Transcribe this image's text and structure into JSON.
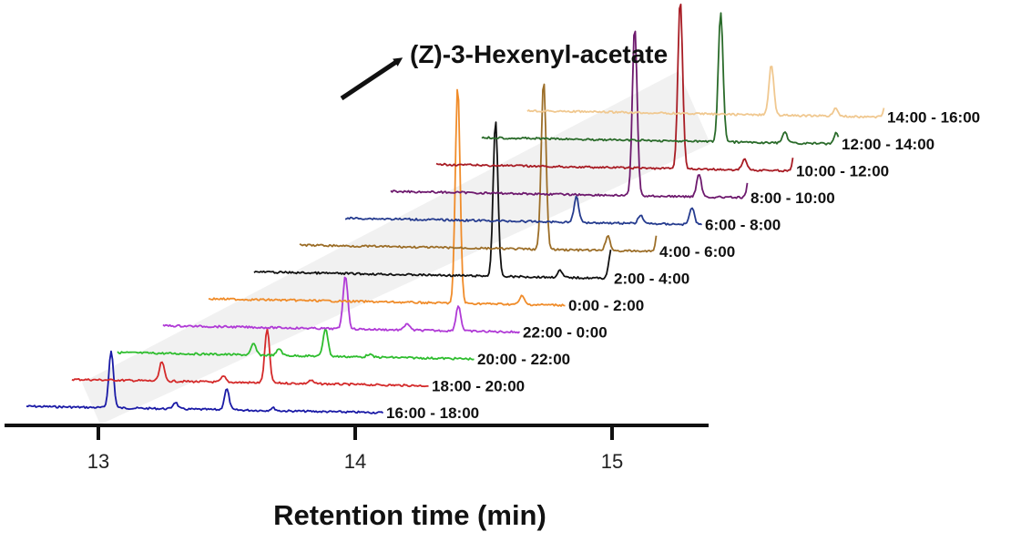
{
  "chart_data": {
    "type": "line",
    "xlabel": "Retention time (min)",
    "ylabel": "",
    "xlim": [
      12.72,
      15.38
    ],
    "xticks": [
      13,
      14,
      15
    ],
    "xtick_labels": [
      "13",
      "14",
      "15"
    ],
    "annotation": "(Z)-3-Hexenyl-acetate",
    "series": [
      {
        "name": "16:00 - 18:00",
        "color": "#1a1aa6",
        "x_start": 12.72,
        "x_end": 13.72,
        "peaks": [
          {
            "x": 13.05,
            "h": 1.0
          },
          {
            "x": 13.3,
            "h": 0.12
          },
          {
            "x": 13.5,
            "h": 0.37
          },
          {
            "x": 13.68,
            "h": 0.05
          }
        ]
      },
      {
        "name": "18:00 - 20:00",
        "color": "#d42a2a",
        "x_start": 12.72,
        "x_end": 13.72,
        "peaks": [
          {
            "x": 13.07,
            "h": 0.34
          },
          {
            "x": 13.31,
            "h": 0.1
          },
          {
            "x": 13.48,
            "h": 0.95
          },
          {
            "x": 13.65,
            "h": 0.06
          }
        ]
      },
      {
        "name": "20:00 - 22:00",
        "color": "#2ebd2e",
        "x_start": 12.72,
        "x_end": 13.72,
        "peaks": [
          {
            "x": 13.25,
            "h": 0.2
          },
          {
            "x": 13.35,
            "h": 0.12
          },
          {
            "x": 13.53,
            "h": 0.5
          },
          {
            "x": 13.7,
            "h": 0.05
          }
        ]
      },
      {
        "name": "22:00 - 0:00",
        "color": "#b03ad6",
        "x_start": 12.72,
        "x_end": 13.72,
        "peaks": [
          {
            "x": 13.43,
            "h": 0.95
          },
          {
            "x": 13.67,
            "h": 0.12
          },
          {
            "x": 13.87,
            "h": 0.45
          }
        ]
      },
      {
        "name": "0:00 - 2:00",
        "color": "#f08c2a",
        "x_start": 12.72,
        "x_end": 13.72,
        "peaks": [
          {
            "x": 13.69,
            "h": 3.85
          },
          {
            "x": 13.94,
            "h": 0.15
          },
          {
            "x": 14.14,
            "h": 0.6
          }
        ]
      },
      {
        "name": "2:00 - 4:00",
        "color": "#111111",
        "x_start": 12.72,
        "x_end": 13.72,
        "peaks": [
          {
            "x": 13.66,
            "h": 2.75
          },
          {
            "x": 13.91,
            "h": 0.12
          },
          {
            "x": 14.11,
            "h": 0.5
          }
        ]
      },
      {
        "name": "4:00 - 6:00",
        "color": "#9c6e28",
        "x_start": 12.72,
        "x_end": 13.72,
        "peaks": [
          {
            "x": 13.67,
            "h": 3.0
          },
          {
            "x": 13.92,
            "h": 0.25
          },
          {
            "x": 14.12,
            "h": 0.6
          }
        ]
      },
      {
        "name": "6:00 - 8:00",
        "color": "#263c8f",
        "x_start": 12.72,
        "x_end": 13.72,
        "peaks": [
          {
            "x": 13.62,
            "h": 0.45
          },
          {
            "x": 13.87,
            "h": 0.15
          },
          {
            "x": 14.07,
            "h": 0.3
          }
        ]
      },
      {
        "name": "8:00 - 10:00",
        "color": "#6e1a6e",
        "x_start": 12.72,
        "x_end": 13.72,
        "peaks": [
          {
            "x": 13.67,
            "h": 3.0
          },
          {
            "x": 13.92,
            "h": 0.4
          },
          {
            "x": 14.12,
            "h": 0.55
          }
        ]
      },
      {
        "name": "10:00 - 12:00",
        "color": "#a81c24",
        "x_start": 12.72,
        "x_end": 13.72,
        "peaks": [
          {
            "x": 13.67,
            "h": 3.0
          },
          {
            "x": 13.92,
            "h": 0.2
          },
          {
            "x": 14.12,
            "h": 0.5
          }
        ]
      },
      {
        "name": "12:00 - 14:00",
        "color": "#2a6b2a",
        "x_start": 12.72,
        "x_end": 13.72,
        "peaks": [
          {
            "x": 13.65,
            "h": 2.3
          },
          {
            "x": 13.9,
            "h": 0.2
          },
          {
            "x": 14.1,
            "h": 0.2
          }
        ]
      },
      {
        "name": "14:00 - 16:00",
        "color": "#f0c890",
        "x_start": 12.72,
        "x_end": 13.72,
        "peaks": [
          {
            "x": 13.67,
            "h": 0.9
          },
          {
            "x": 13.92,
            "h": 0.15
          },
          {
            "x": 14.12,
            "h": 0.35
          }
        ]
      }
    ]
  }
}
